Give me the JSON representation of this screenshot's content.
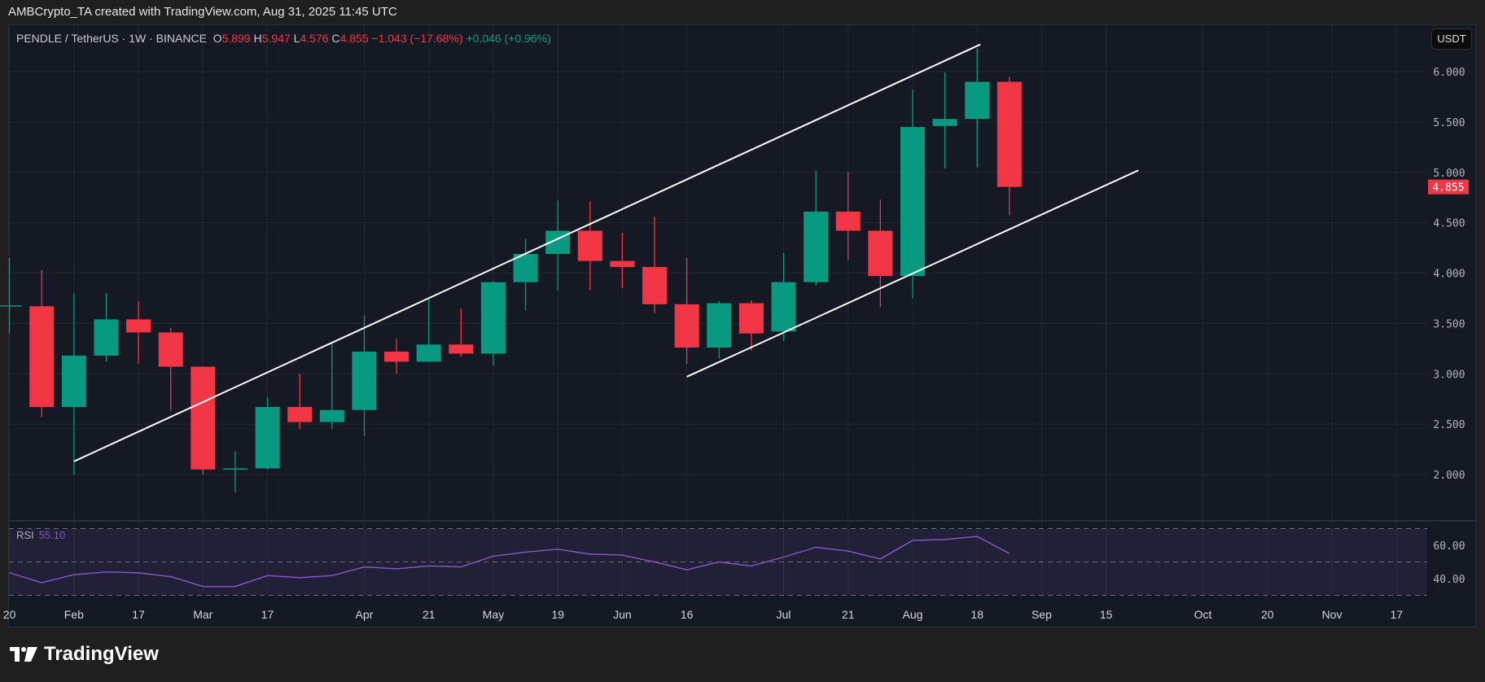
{
  "header": "AMBCrypto_TA created with TradingView.com, Aug 31, 2025 11:45 UTC",
  "legend": {
    "symbol": "PENDLE / TetherUS · 1W · BINANCE",
    "o_label": "O",
    "o": "5.899",
    "h_label": "H",
    "h": "5.947",
    "l_label": "L",
    "l": "4.576",
    "c_label": "C",
    "c": "4.855",
    "change": "−1.043 (−17.68%)",
    "change2": "+0.046 (+0.96%)"
  },
  "currency_button": "USDT",
  "rsi": {
    "label": "RSI",
    "value": "55.10"
  },
  "logo": "TradingView",
  "colors": {
    "up": "#089981",
    "down": "#f23645",
    "rsi": "#7e57c2"
  },
  "chart_data": {
    "type": "candlestick",
    "title": "PENDLE / TetherUS 1W BINANCE",
    "x_note": "weekly bars, index 0 = Jan 20 2025",
    "ylim": [
      1.6,
      6.45
    ],
    "y_ticks": [
      "6.000",
      "5.500",
      "5.000",
      "4.500",
      "4.000",
      "3.500",
      "3.000",
      "2.500",
      "2.000"
    ],
    "last_price": "4.855",
    "x_ticks": [
      {
        "i": 0,
        "label": "20"
      },
      {
        "i": 2,
        "label": "Feb"
      },
      {
        "i": 4,
        "label": "17"
      },
      {
        "i": 6,
        "label": "Mar"
      },
      {
        "i": 8,
        "label": "17"
      },
      {
        "i": 11,
        "label": "Apr"
      },
      {
        "i": 13,
        "label": "21"
      },
      {
        "i": 15,
        "label": "May"
      },
      {
        "i": 17,
        "label": "19"
      },
      {
        "i": 19,
        "label": "Jun"
      },
      {
        "i": 21,
        "label": "16"
      },
      {
        "i": 24,
        "label": "Jul"
      },
      {
        "i": 26,
        "label": "21"
      },
      {
        "i": 28,
        "label": "Aug"
      },
      {
        "i": 30,
        "label": "18"
      },
      {
        "i": 32,
        "label": "Sep"
      },
      {
        "i": 34,
        "label": "15"
      },
      {
        "i": 37,
        "label": "Oct"
      },
      {
        "i": 39,
        "label": "20"
      },
      {
        "i": 41,
        "label": "Nov"
      },
      {
        "i": 43,
        "label": "17"
      }
    ],
    "candles": [
      [
        3.68,
        4.15,
        3.4,
        3.68
      ],
      [
        3.67,
        4.03,
        2.57,
        2.67
      ],
      [
        2.67,
        3.8,
        2.0,
        3.18
      ],
      [
        3.18,
        3.8,
        3.12,
        3.54
      ],
      [
        3.54,
        3.72,
        3.1,
        3.41
      ],
      [
        3.41,
        3.46,
        2.63,
        3.07
      ],
      [
        3.07,
        3.07,
        2.0,
        2.05
      ],
      [
        2.06,
        2.23,
        1.82,
        2.06
      ],
      [
        2.06,
        2.77,
        2.05,
        2.67
      ],
      [
        2.67,
        3.0,
        2.45,
        2.52
      ],
      [
        2.52,
        3.3,
        2.45,
        2.64
      ],
      [
        2.64,
        3.58,
        2.38,
        3.22
      ],
      [
        3.22,
        3.35,
        3.0,
        3.12
      ],
      [
        3.12,
        3.75,
        3.12,
        3.29
      ],
      [
        3.29,
        3.65,
        3.17,
        3.2
      ],
      [
        3.2,
        3.92,
        3.08,
        3.91
      ],
      [
        3.91,
        4.34,
        3.63,
        4.19
      ],
      [
        4.19,
        4.72,
        3.83,
        4.42
      ],
      [
        4.42,
        4.71,
        3.83,
        4.12
      ],
      [
        4.12,
        4.4,
        3.85,
        4.06
      ],
      [
        4.06,
        4.56,
        3.6,
        3.69
      ],
      [
        3.69,
        4.15,
        3.1,
        3.26
      ],
      [
        3.26,
        3.72,
        3.15,
        3.7
      ],
      [
        3.7,
        3.73,
        3.23,
        3.4
      ],
      [
        3.42,
        4.2,
        3.33,
        3.91
      ],
      [
        3.91,
        5.02,
        3.88,
        4.61
      ],
      [
        4.61,
        5.0,
        4.13,
        4.42
      ],
      [
        4.42,
        4.73,
        3.66,
        3.97
      ],
      [
        3.97,
        5.82,
        3.75,
        5.45
      ],
      [
        5.46,
        5.99,
        5.04,
        5.53
      ],
      [
        5.53,
        6.23,
        5.05,
        5.899
      ],
      [
        5.899,
        5.947,
        4.576,
        4.855
      ]
    ],
    "candle_format": "[open,high,low,close]",
    "trendlines": [
      {
        "name": "upper-channel",
        "from": [
          2,
          2.13
        ],
        "to": [
          30.1,
          6.27
        ]
      },
      {
        "name": "lower-channel",
        "from": [
          21,
          2.97
        ],
        "to": [
          35,
          5.02
        ]
      }
    ],
    "rsi_series": [
      43.5,
      37.6,
      42.4,
      44,
      43.5,
      41.2,
      35.3,
      35.3,
      41.8,
      40.6,
      41.8,
      47,
      45.9,
      47.6,
      47,
      53.5,
      55.9,
      57.6,
      54.7,
      54.1,
      50,
      45.3,
      50,
      47.6,
      52.9,
      58.8,
      56.5,
      51.8,
      62.9,
      63.5,
      65.3,
      55.1
    ],
    "rsi_ticks": [
      "60.00",
      "40.00"
    ],
    "rsi_bands": [
      30,
      50,
      70
    ]
  }
}
